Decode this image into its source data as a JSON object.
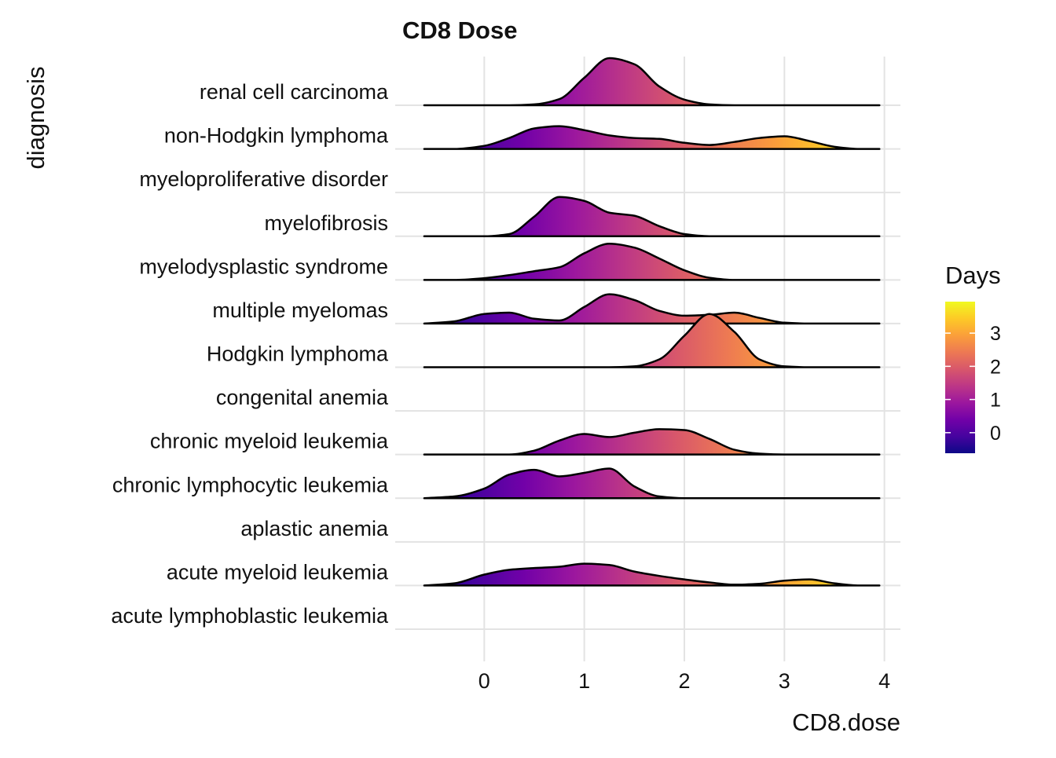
{
  "chart_data": {
    "type": "ridgeline",
    "title": "CD8 Dose",
    "x_label": "CD8.dose",
    "y_label": "diagnosis",
    "categories": [
      "acute lymphoblastic leukemia",
      "acute myeloid leukemia",
      "aplastic anemia",
      "chronic lymphocytic leukemia",
      "chronic myeloid leukemia",
      "congenital anemia",
      "Hodgkin lymphoma",
      "multiple myelomas",
      "myelodysplastic syndrome",
      "myelofibrosis",
      "myeloproliferative disorder",
      "non-Hodgkin lymphoma",
      "renal cell carcinoma"
    ],
    "x": [
      -0.6,
      -0.3,
      0,
      0.25,
      0.5,
      0.75,
      1,
      1.25,
      1.5,
      1.75,
      2,
      2.25,
      2.5,
      2.75,
      3,
      3.25,
      3.5,
      3.75,
      3.95
    ],
    "densities": [
      null,
      [
        0,
        0.05,
        0.25,
        0.36,
        0.4,
        0.43,
        0.5,
        0.47,
        0.32,
        0.22,
        0.14,
        0.07,
        0.02,
        0.04,
        0.11,
        0.14,
        0.05,
        0,
        0
      ],
      null,
      [
        0,
        0.04,
        0.22,
        0.54,
        0.65,
        0.5,
        0.58,
        0.68,
        0.27,
        0.04,
        0,
        0,
        0,
        0,
        0,
        0,
        0,
        0,
        0
      ],
      [
        0,
        0,
        0,
        0,
        0.09,
        0.32,
        0.47,
        0.4,
        0.5,
        0.58,
        0.56,
        0.36,
        0.11,
        0.02,
        0,
        0,
        0,
        0,
        0
      ],
      null,
      [
        0,
        0,
        0,
        0,
        0,
        0,
        0,
        0,
        0.02,
        0.18,
        0.72,
        1.22,
        0.81,
        0.18,
        0.02,
        0,
        0,
        0,
        0
      ],
      [
        0,
        0.05,
        0.22,
        0.25,
        0.11,
        0.07,
        0.38,
        0.67,
        0.54,
        0.29,
        0.18,
        0.2,
        0.25,
        0.13,
        0.02,
        0,
        0,
        0,
        0
      ],
      [
        0,
        0,
        0.04,
        0.11,
        0.2,
        0.29,
        0.61,
        0.83,
        0.74,
        0.49,
        0.22,
        0.05,
        0,
        0,
        0,
        0,
        0,
        0,
        0
      ],
      [
        0,
        0,
        0,
        0.05,
        0.45,
        0.9,
        0.81,
        0.54,
        0.47,
        0.23,
        0.05,
        0,
        0,
        0,
        0,
        0,
        0,
        0,
        0
      ],
      null,
      [
        0,
        0,
        0.07,
        0.25,
        0.47,
        0.52,
        0.43,
        0.31,
        0.25,
        0.23,
        0.14,
        0.09,
        0.16,
        0.25,
        0.29,
        0.18,
        0.05,
        0,
        0
      ],
      [
        0,
        0,
        0,
        0,
        0.02,
        0.14,
        0.63,
        1.08,
        0.94,
        0.43,
        0.13,
        0.02,
        0,
        0,
        0,
        0,
        0,
        0,
        0
      ]
    ],
    "xlim": [
      -0.89,
      4.16
    ],
    "xticks": [
      0,
      1,
      2,
      3,
      4
    ],
    "grid": true,
    "legend_title": "Days",
    "colorlim": [
      -0.62,
      3.95
    ],
    "colorticks": [
      0,
      1,
      2,
      3
    ],
    "colormap": [
      "#0d0887",
      "#46039f",
      "#7201a8",
      "#9c179e",
      "#bd3786",
      "#d8576b",
      "#ed7953",
      "#fb9f3a",
      "#fdca26",
      "#f0f921"
    ],
    "line_color": "#000000"
  }
}
